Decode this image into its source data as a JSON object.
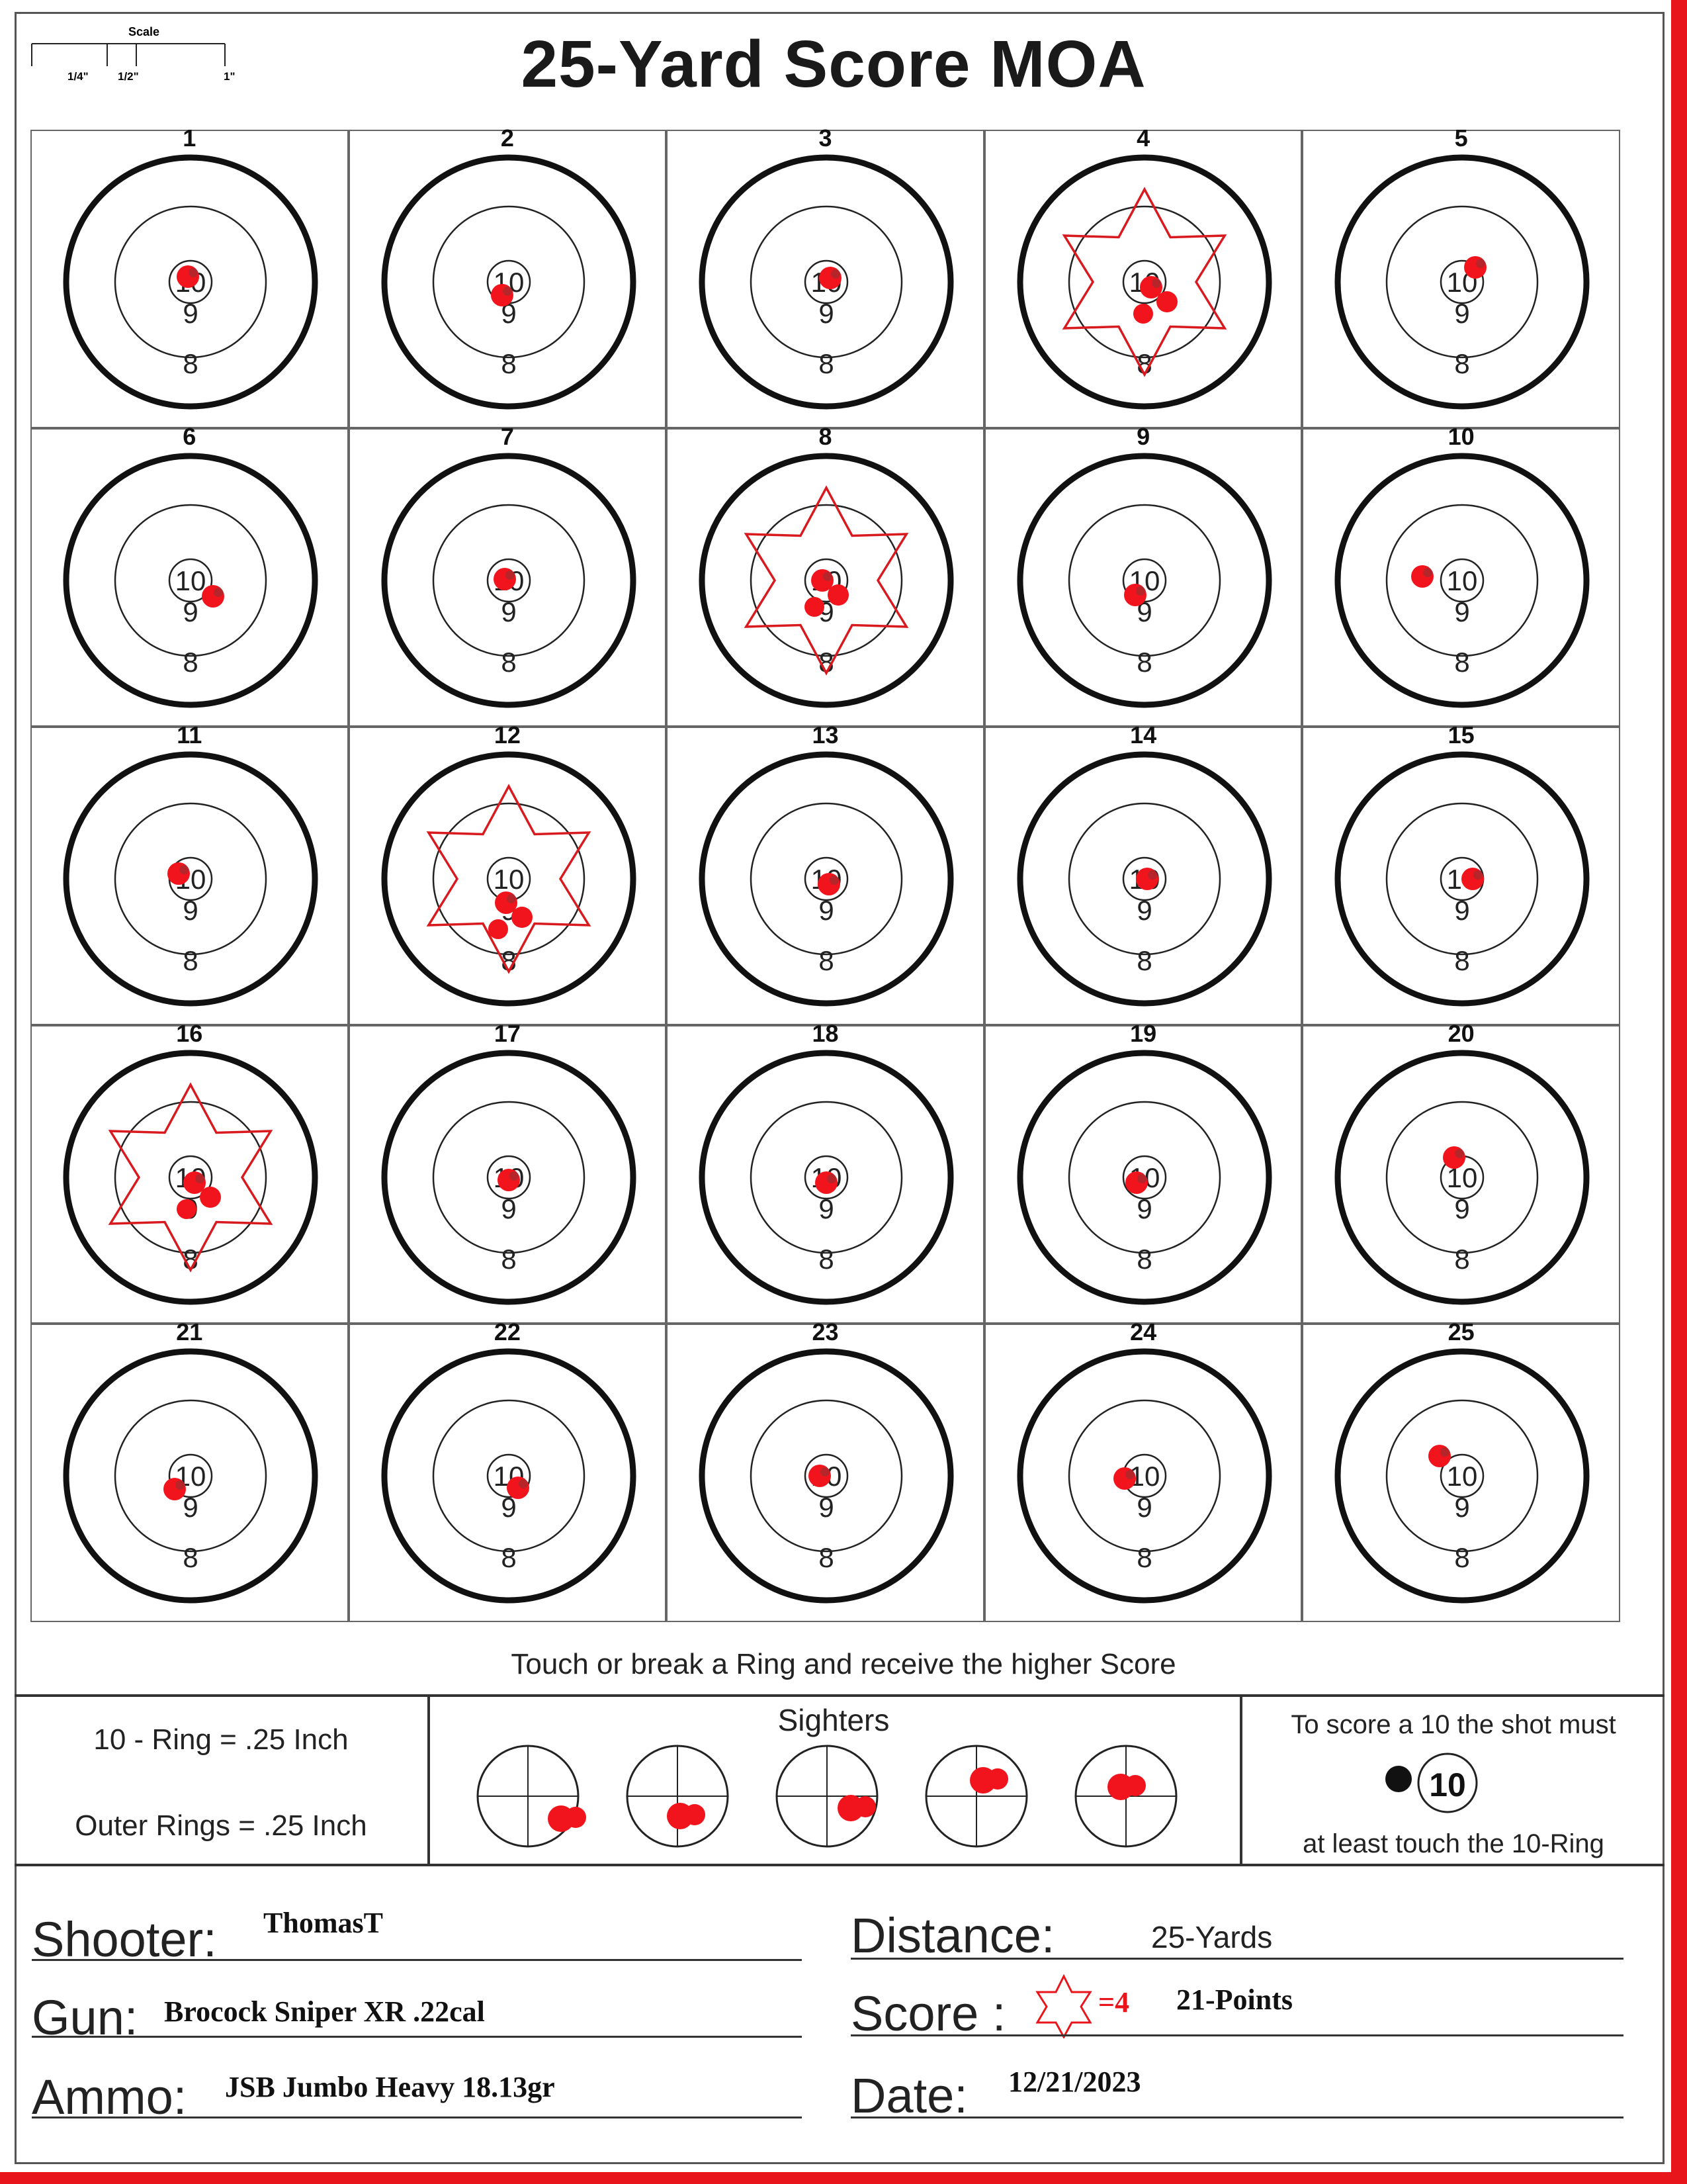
{
  "title": "25-Yard Score MOA",
  "scale": {
    "title": "Scale",
    "labels": [
      "1/4\"",
      "1/2\"",
      "1\""
    ]
  },
  "targets": [
    {
      "n": "1",
      "rings": [
        "10",
        "9",
        "8"
      ]
    },
    {
      "n": "2",
      "rings": [
        "10",
        "9",
        "8"
      ]
    },
    {
      "n": "3",
      "rings": [
        "10",
        "9",
        "8"
      ]
    },
    {
      "n": "4",
      "rings": [
        "10",
        "9",
        "8"
      ],
      "star": true
    },
    {
      "n": "5",
      "rings": [
        "10",
        "9",
        "8"
      ]
    },
    {
      "n": "6",
      "rings": [
        "10",
        "9",
        "8"
      ]
    },
    {
      "n": "7",
      "rings": [
        "10",
        "9",
        "8"
      ]
    },
    {
      "n": "8",
      "rings": [
        "10",
        "9",
        "8"
      ],
      "star": true
    },
    {
      "n": "9",
      "rings": [
        "10",
        "9",
        "8"
      ]
    },
    {
      "n": "10",
      "rings": [
        "10",
        "9",
        "8"
      ]
    },
    {
      "n": "11",
      "rings": [
        "10",
        "9",
        "8"
      ]
    },
    {
      "n": "12",
      "rings": [
        "10",
        "9",
        "8"
      ],
      "star": true
    },
    {
      "n": "13",
      "rings": [
        "10",
        "9",
        "8"
      ]
    },
    {
      "n": "14",
      "rings": [
        "10",
        "9",
        "8"
      ]
    },
    {
      "n": "15",
      "rings": [
        "10",
        "9",
        "8"
      ]
    },
    {
      "n": "16",
      "rings": [
        "10",
        "9",
        "8"
      ],
      "star": true
    },
    {
      "n": "17",
      "rings": [
        "10",
        "9",
        "8"
      ]
    },
    {
      "n": "18",
      "rings": [
        "10",
        "9",
        "8"
      ]
    },
    {
      "n": "19",
      "rings": [
        "10",
        "9",
        "8"
      ]
    },
    {
      "n": "20",
      "rings": [
        "10",
        "9",
        "8"
      ]
    },
    {
      "n": "21",
      "rings": [
        "10",
        "9",
        "8"
      ]
    },
    {
      "n": "22",
      "rings": [
        "10",
        "9",
        "8"
      ]
    },
    {
      "n": "23",
      "rings": [
        "10",
        "9",
        "8"
      ]
    },
    {
      "n": "24",
      "rings": [
        "10",
        "9",
        "8"
      ]
    },
    {
      "n": "25",
      "rings": [
        "10",
        "9",
        "8"
      ]
    }
  ],
  "rule_text": "Touch or break a Ring and receive the higher Score",
  "info": {
    "ring_size": "10 - Ring = .25 Inch",
    "outer_rings": "Outer Rings = .25 Inch",
    "sighters_title": "Sighters",
    "score_rule_top": "To score a 10 the shot must",
    "score_rule_badge": "10",
    "score_rule_bottom": "at least touch the 10-Ring"
  },
  "form": {
    "shooter_label": "Shooter:",
    "shooter_value": "ThomasT",
    "gun_label": "Gun:",
    "gun_value": "Brocock Sniper XR .22cal",
    "ammo_label": "Ammo:",
    "ammo_value": "JSB Jumbo Heavy 18.13gr",
    "distance_label": "Distance:",
    "distance_value": "25-Yards",
    "score_label": "Score :",
    "score_star_count": "=4",
    "score_value": "21-Points",
    "date_label": "Date:",
    "date_value": "12/21/2023"
  },
  "colors": {
    "accent_red": "#e8161b",
    "ink": "#222222"
  }
}
